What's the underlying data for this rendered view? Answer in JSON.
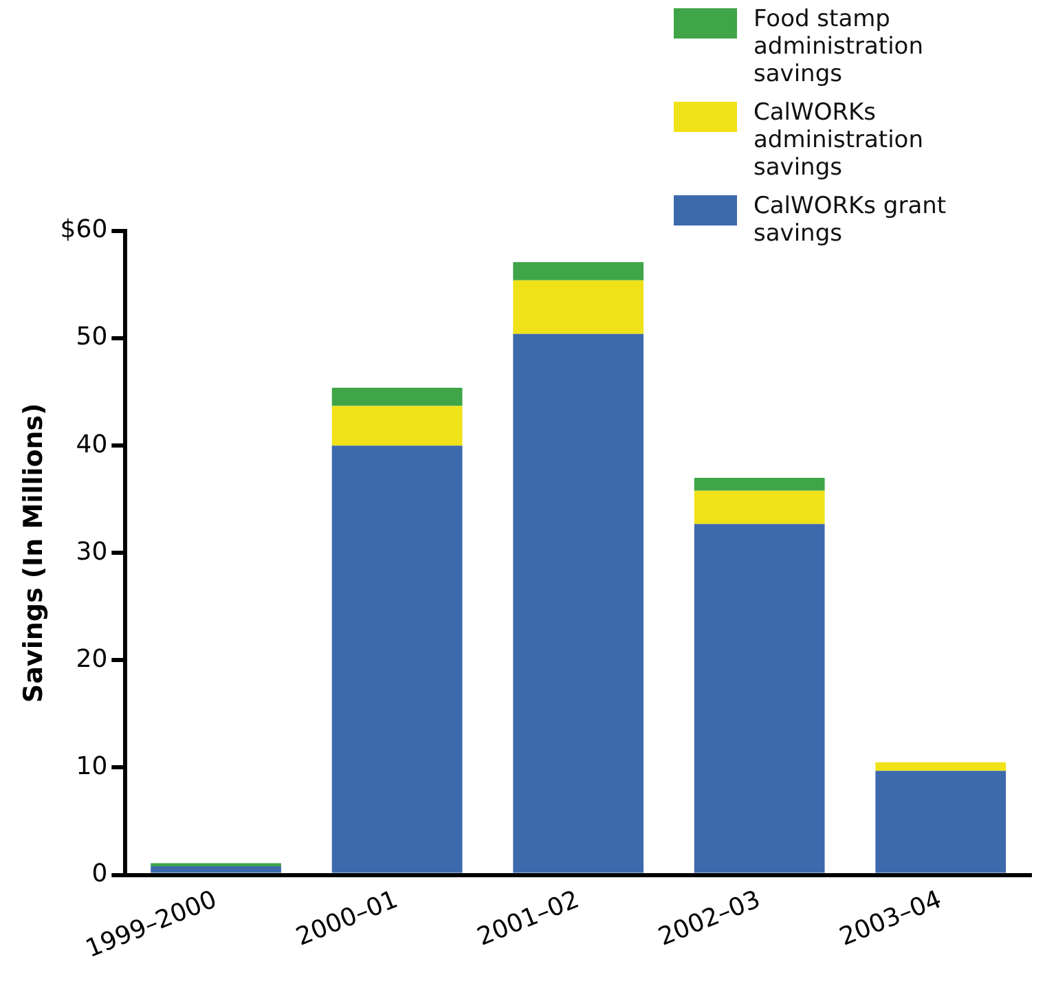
{
  "chart_data": {
    "type": "bar",
    "stacked": true,
    "ylabel": "Savings (In Millions)",
    "categories": [
      "1999–2000",
      "2000–01",
      "2001–02",
      "2002–03",
      "2003–04"
    ],
    "series": [
      {
        "name": "CalWORKs grant savings",
        "color": "#3d69ad",
        "values": [
          0.8,
          40,
          50.4,
          32.7,
          9.7
        ]
      },
      {
        "name": "CalWORKs administration savings",
        "color": "#f0e219",
        "values": [
          0,
          3.7,
          5.0,
          3.1,
          0.8
        ]
      },
      {
        "name": "Food stamp administration savings",
        "color": "#3fa548",
        "values": [
          0.3,
          1.7,
          1.7,
          1.2,
          0
        ]
      }
    ],
    "ylim": [
      0,
      60
    ],
    "yticks": [
      0,
      10,
      20,
      30,
      40,
      50,
      {
        "value": 60,
        "label": "$60"
      }
    ],
    "grid": false,
    "legend": "top right"
  }
}
